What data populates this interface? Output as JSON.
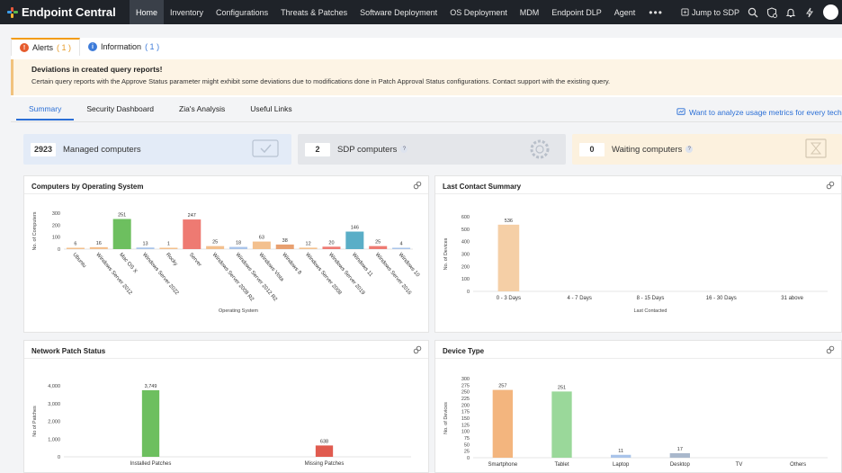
{
  "nav": {
    "brand": "Endpoint Central",
    "items": [
      "Home",
      "Inventory",
      "Configurations",
      "Threats & Patches",
      "Software Deployment",
      "OS Deployment",
      "MDM",
      "Endpoint DLP",
      "Agent"
    ],
    "active": "Home",
    "more": "•••",
    "jump_to_sdp": "Jump to SDP",
    "icons": [
      "search-icon",
      "shield-icon",
      "bell-icon",
      "bolt-icon",
      "avatar"
    ]
  },
  "alerts": {
    "alerts_tab": "Alerts",
    "alerts_count": "( 1 )",
    "info_tab": "Information",
    "info_count": "( 1 )",
    "title": "Deviations in created query reports!",
    "text": "Certain query reports with the Approve Status parameter might exhibit some deviations due to modifications done in Patch Approval Status configurations. Contact support with the existing query."
  },
  "subtabs": [
    "Summary",
    "Security Dashboard",
    "Zia's Analysis",
    "Useful Links"
  ],
  "analyze_link": "Want to analyze usage metrics for every technici",
  "summary": {
    "managed": {
      "count": "2923",
      "label": "Managed computers"
    },
    "sdp": {
      "count": "2",
      "label": "SDP computers",
      "help": "?"
    },
    "waiting": {
      "count": "0",
      "label": "Waiting computers",
      "help": "?"
    }
  },
  "colors": {
    "blue": "#6b9bd8",
    "green": "#6dbf5f",
    "red": "#ee7a72",
    "orange": "#f3c08e",
    "teal": "#5aaec7",
    "lightgreen": "#9ad89a",
    "lightblue": "#a9c4ea"
  },
  "panels": {
    "os": {
      "title": "Computers by Operating System",
      "chart_data": {
        "type": "bar",
        "xlabel": "Operating System",
        "ylabel": "No. of Computers",
        "ylim": [
          0,
          300
        ],
        "yticks": [
          0,
          100,
          200,
          300
        ],
        "categories": [
          "Ubuntu",
          "Windows Server 2012",
          "Mac OS X",
          "Windows Server 2022",
          "Rocky",
          "Server",
          "Windows Server 2008 R2",
          "Windows Server 2012 R2",
          "Windows Vista",
          "Windows 8",
          "Windows Server 2008",
          "Windows Server 2019",
          "Windows 11",
          "Windows Server 2016",
          "Windows 10"
        ],
        "values": [
          6,
          16,
          251,
          13,
          1,
          247,
          25,
          18,
          63,
          38,
          12,
          20,
          146,
          25,
          4
        ],
        "bar_colors": [
          "#f3c08e",
          "#f3c08e",
          "#6dbf5f",
          "#a9c4ea",
          "#f3c08e",
          "#ee7a72",
          "#f3c08e",
          "#a9c4ea",
          "#f3c08e",
          "#e8a070",
          "#f3c08e",
          "#ee7a72",
          "#5aaec7",
          "#ee7a72",
          "#a9c4ea"
        ]
      }
    },
    "contact": {
      "title": "Last Contact Summary",
      "chart_data": {
        "type": "bar",
        "xlabel": "Last Contacted",
        "ylabel": "No. of Devices",
        "ylim": [
          0,
          600
        ],
        "yticks": [
          0,
          100,
          200,
          300,
          400,
          500,
          600
        ],
        "categories": [
          "0 - 3 Days",
          "4 - 7 Days",
          "8 - 15 Days",
          "16 - 30 Days",
          "31 above"
        ],
        "values": [
          536,
          0,
          0,
          0,
          0
        ],
        "bar_colors": [
          "#f5cfa6",
          "#f5cfa6",
          "#f5cfa6",
          "#f5cfa6",
          "#f5cfa6"
        ]
      }
    },
    "patch": {
      "title": "Network Patch Status",
      "chart_data": {
        "type": "bar",
        "xlabel": "",
        "ylabel": "No of Patches",
        "ylim": [
          0,
          4000
        ],
        "yticks": [
          0,
          1000,
          2000,
          3000,
          4000
        ],
        "ytick_labels": [
          "0",
          "1,000",
          "2,000",
          "3,000",
          "4,000"
        ],
        "categories": [
          "Installed Patches",
          "Missing Patches"
        ],
        "values": [
          3749,
          638
        ],
        "value_labels": [
          "3,749",
          "638"
        ],
        "bar_colors": [
          "#6dbf5f",
          "#e05b4f"
        ]
      }
    },
    "device": {
      "title": "Device Type",
      "chart_data": {
        "type": "bar",
        "xlabel": "",
        "ylabel": "No. of Devices",
        "ylim": [
          0,
          300
        ],
        "yticks": [
          0,
          25,
          50,
          75,
          100,
          125,
          150,
          175,
          200,
          225,
          250,
          275,
          300
        ],
        "categories": [
          "Smartphone",
          "Tablet",
          "Laptop",
          "Desktop",
          "TV",
          "Others"
        ],
        "values": [
          257,
          251,
          11,
          17,
          0,
          0
        ],
        "bar_colors": [
          "#f3b57e",
          "#9ad89a",
          "#a9c4ea",
          "#a9b8cc",
          "#ccc",
          "#ccc"
        ]
      }
    }
  }
}
